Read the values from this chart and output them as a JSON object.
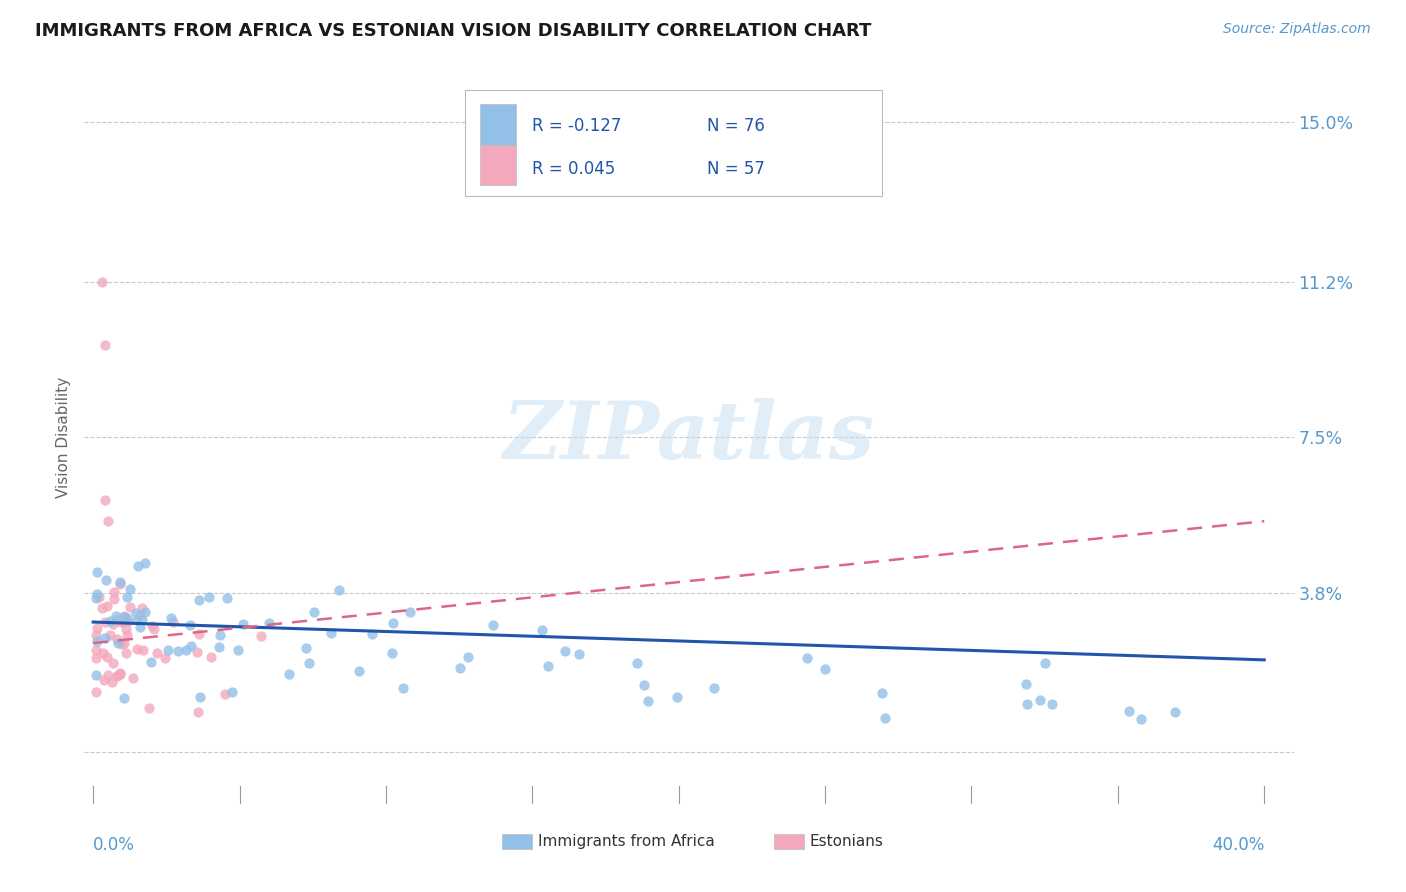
{
  "title": "IMMIGRANTS FROM AFRICA VS ESTONIAN VISION DISABILITY CORRELATION CHART",
  "source": "Source: ZipAtlas.com",
  "ylabel": "Vision Disability",
  "ytick_vals": [
    0.0,
    0.038,
    0.075,
    0.112,
    0.15
  ],
  "ytick_labels": [
    "",
    "3.8%",
    "7.5%",
    "11.2%",
    "15.0%"
  ],
  "xlim": [
    -0.003,
    0.41
  ],
  "ylim": [
    -0.012,
    0.162
  ],
  "legend_r1": "R = -0.127",
  "legend_n1": "N = 76",
  "legend_r2": "R = 0.045",
  "legend_n2": "N = 57",
  "legend_label1": "Immigrants from Africa",
  "legend_label2": "Estonians",
  "color_blue": "#92c0e8",
  "color_pink": "#f4a8bc",
  "color_blue_line": "#2255aa",
  "color_pink_line": "#dd6688",
  "watermark": "ZIPatlas",
  "blue_trendline_x0": 0.0,
  "blue_trendline_y0": 0.031,
  "blue_trendline_x1": 0.4,
  "blue_trendline_y1": 0.022,
  "pink_trendline_x0": 0.0,
  "pink_trendline_y0": 0.026,
  "pink_trendline_x1": 0.4,
  "pink_trendline_y1": 0.055
}
